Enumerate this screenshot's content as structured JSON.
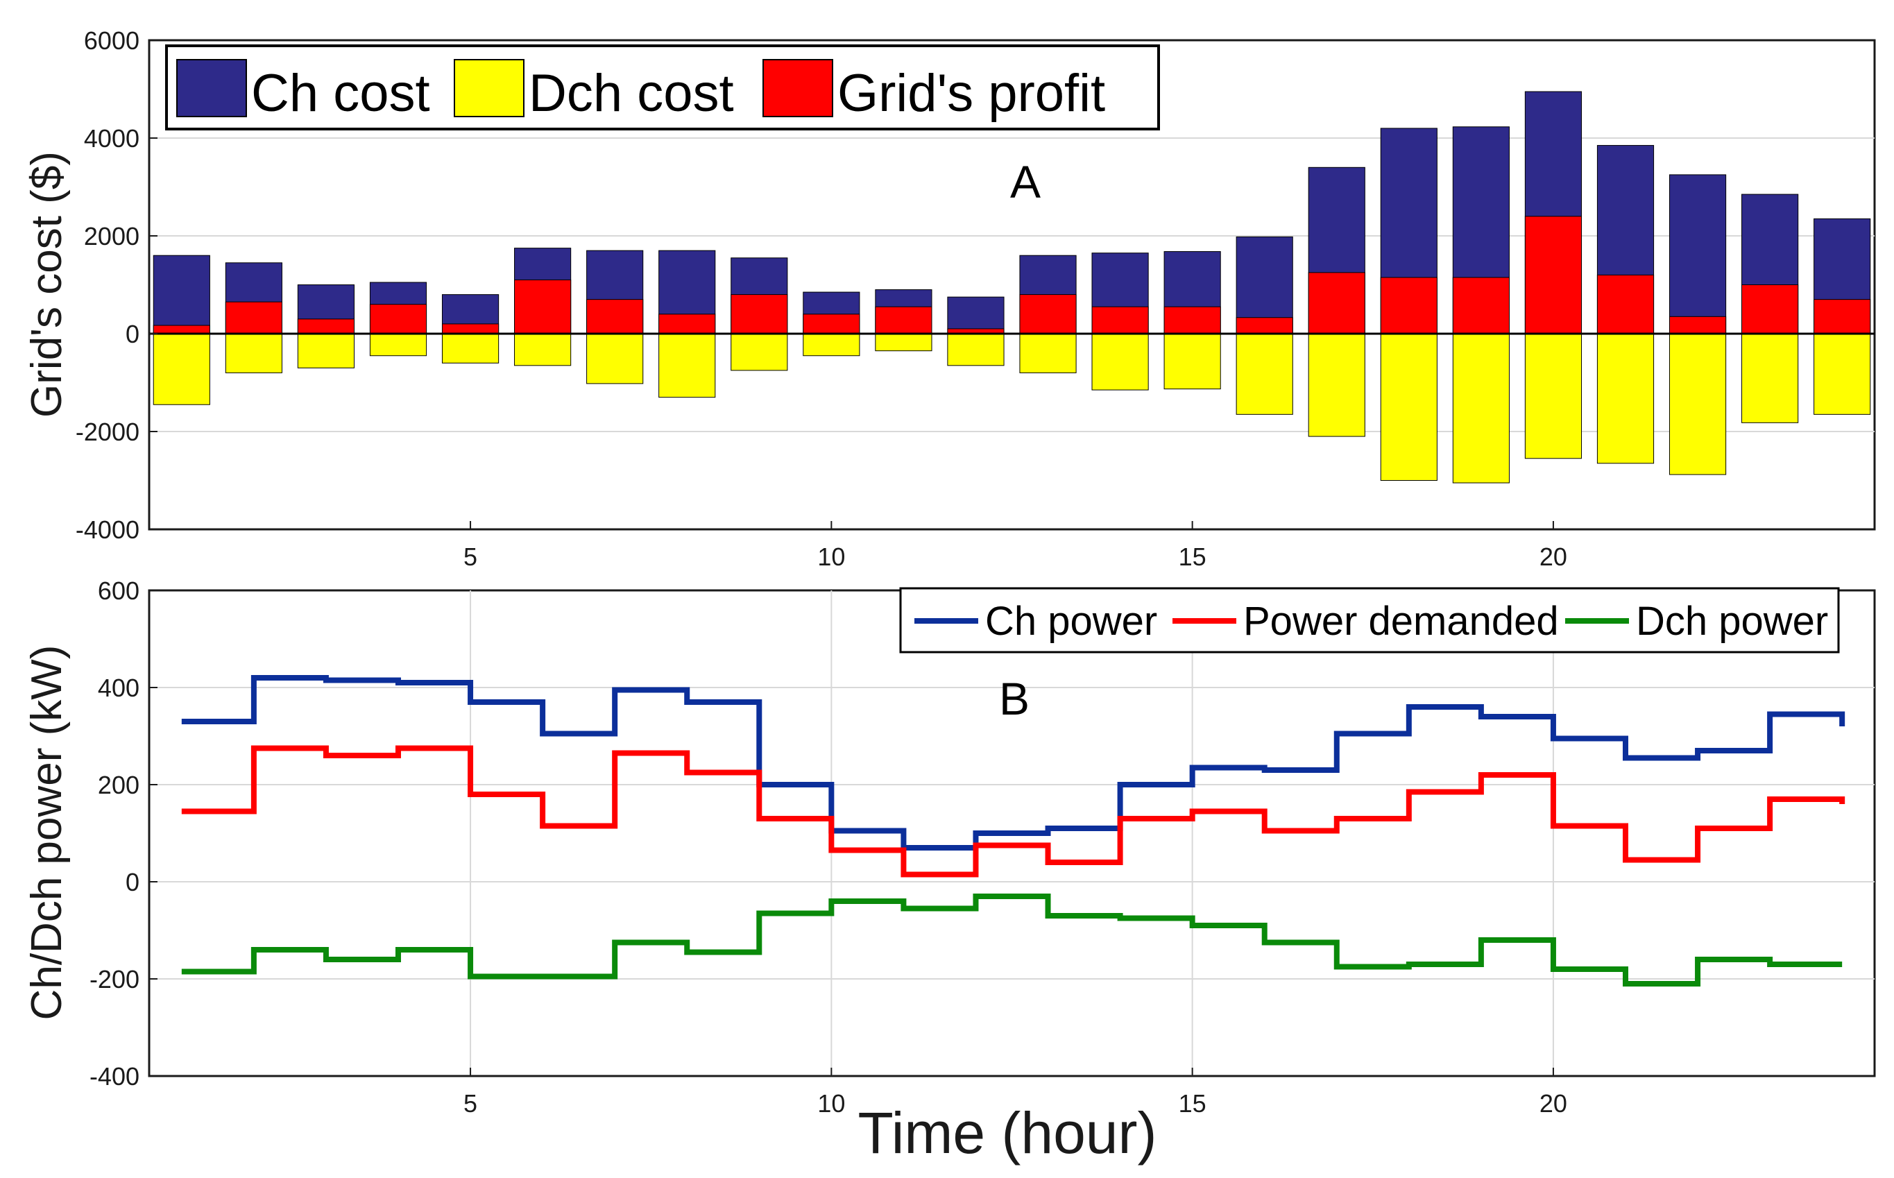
{
  "chart_data": [
    {
      "type": "bar",
      "panel_label": "A",
      "ylabel": "Grid's cost ($)",
      "xlabel": "",
      "xlim": [
        0.55,
        24.45
      ],
      "ylim": [
        -4000,
        6000
      ],
      "yticks": [
        6000,
        4000,
        2000,
        0,
        -2000,
        -4000
      ],
      "ytick_labels": [
        "6000",
        "4000",
        "2000",
        "0",
        "-2000",
        "-4000"
      ],
      "xticks": [
        5,
        10,
        15,
        20
      ],
      "xtick_labels": [
        "5",
        "10",
        "15",
        "20"
      ],
      "legend_position": "top-left",
      "x": [
        1,
        2,
        3,
        4,
        5,
        6,
        7,
        8,
        9,
        10,
        11,
        12,
        13,
        14,
        15,
        16,
        17,
        18,
        19,
        20,
        21,
        22,
        23,
        24
      ],
      "series": [
        {
          "name": "Ch cost",
          "color": "#2e2a8a",
          "values": [
            1600,
            1450,
            1000,
            1050,
            800,
            1750,
            1700,
            1700,
            1550,
            850,
            900,
            750,
            1600,
            1650,
            1680,
            1980,
            3400,
            4200,
            4230,
            4950,
            3850,
            3250,
            2850,
            2350
          ]
        },
        {
          "name": "Dch cost",
          "color": "#ffff00",
          "values": [
            -1450,
            -800,
            -700,
            -450,
            -600,
            -650,
            -1020,
            -1300,
            -750,
            -450,
            -350,
            -650,
            -800,
            -1150,
            -1130,
            -1650,
            -2100,
            -3000,
            -3050,
            -2550,
            -2650,
            -2880,
            -1820,
            -1650
          ]
        },
        {
          "name": "Grid's profit",
          "color": "#ff0000",
          "values": [
            170,
            650,
            300,
            600,
            200,
            1100,
            700,
            400,
            800,
            400,
            550,
            100,
            800,
            550,
            550,
            330,
            1250,
            1150,
            1150,
            2400,
            1200,
            350,
            1000,
            700
          ]
        }
      ]
    },
    {
      "type": "line",
      "panel_label": "B",
      "ylabel": "Ch/Dch power (kW)",
      "xlabel": "Time (hour)",
      "xlim": [
        0.55,
        24.45
      ],
      "ylim": [
        -400,
        600
      ],
      "yticks": [
        600,
        400,
        200,
        0,
        -200,
        -400
      ],
      "ytick_labels": [
        "600",
        "400",
        "200",
        "0",
        "-200",
        "-400"
      ],
      "xticks": [
        5,
        10,
        15,
        20
      ],
      "xtick_labels": [
        "5",
        "10",
        "15",
        "20"
      ],
      "legend_position": "top-right",
      "x": [
        1,
        2,
        3,
        4,
        5,
        6,
        7,
        8,
        9,
        10,
        11,
        12,
        13,
        14,
        15,
        16,
        17,
        18,
        19,
        20,
        21,
        22,
        23,
        24
      ],
      "series": [
        {
          "name": "Ch power",
          "color": "#0c2f9a",
          "values": [
            330,
            420,
            415,
            410,
            370,
            305,
            395,
            370,
            200,
            105,
            70,
            100,
            110,
            200,
            235,
            230,
            305,
            360,
            340,
            295,
            255,
            270,
            345,
            320
          ]
        },
        {
          "name": "Power demanded",
          "color": "#ff0000",
          "values": [
            145,
            275,
            260,
            275,
            180,
            115,
            265,
            225,
            130,
            65,
            15,
            75,
            40,
            130,
            145,
            105,
            130,
            185,
            220,
            115,
            45,
            110,
            170,
            160
          ]
        },
        {
          "name": "Dch power",
          "color": "#0a8a0a",
          "values": [
            -185,
            -140,
            -160,
            -140,
            -195,
            -195,
            -125,
            -145,
            -65,
            -40,
            -55,
            -30,
            -70,
            -75,
            -90,
            -125,
            -175,
            -170,
            -120,
            -180,
            -210,
            -160,
            -170,
            -170
          ]
        }
      ]
    }
  ]
}
